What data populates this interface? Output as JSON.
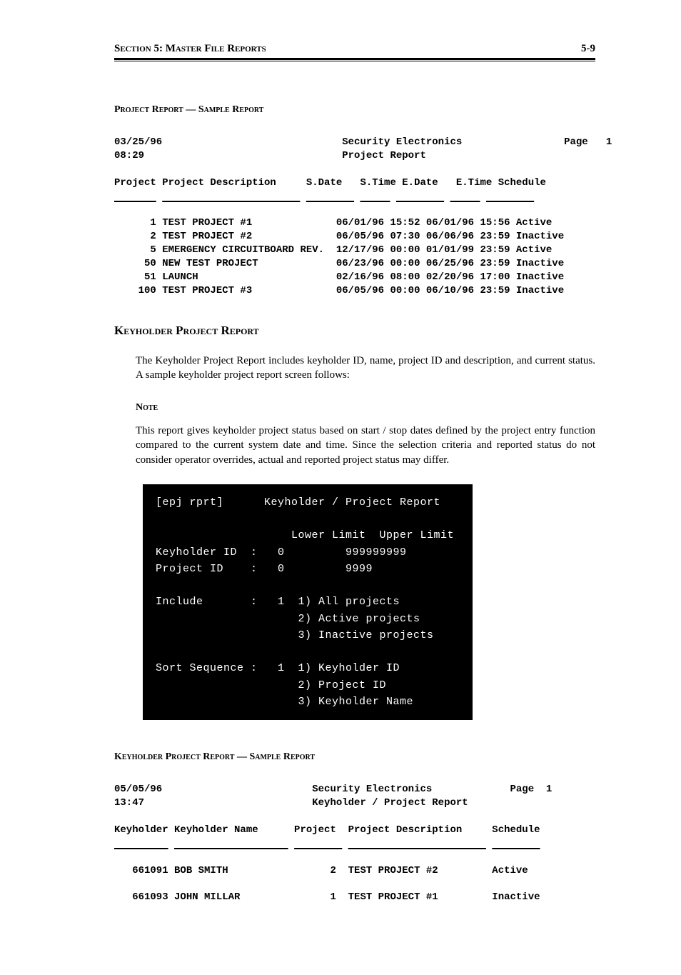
{
  "header": {
    "left": "Section 5: Master File Reports",
    "right": "5-9"
  },
  "caption1": "Project Report — Sample Report",
  "report1": {
    "date": "03/25/96",
    "time": "08:29",
    "company": "Security Electronics",
    "title": "Project Report",
    "page_label": "Page",
    "page_num": "1",
    "columns": [
      "Project",
      "Project Description",
      "S.Date",
      "S.Time",
      "E.Date",
      "E.Time",
      "Schedule"
    ],
    "rows": [
      {
        "id": "1",
        "desc": "TEST PROJECT #1",
        "sdate": "06/01/96",
        "stime": "15:52",
        "edate": "06/01/96",
        "etime": "15:56",
        "sched": "Active"
      },
      {
        "id": "2",
        "desc": "TEST PROJECT #2",
        "sdate": "06/05/96",
        "stime": "07:30",
        "edate": "06/06/96",
        "etime": "23:59",
        "sched": "Inactive"
      },
      {
        "id": "5",
        "desc": "EMERGENCY CIRCUITBOARD REV.",
        "sdate": "12/17/96",
        "stime": "00:00",
        "edate": "01/01/99",
        "etime": "23:59",
        "sched": "Active"
      },
      {
        "id": "50",
        "desc": "NEW TEST PROJECT",
        "sdate": "06/23/96",
        "stime": "00:00",
        "edate": "06/25/96",
        "etime": "23:59",
        "sched": "Inactive"
      },
      {
        "id": "51",
        "desc": "LAUNCH",
        "sdate": "02/16/96",
        "stime": "08:00",
        "edate": "02/20/96",
        "etime": "17:00",
        "sched": "Inactive"
      },
      {
        "id": "100",
        "desc": "TEST PROJECT #3",
        "sdate": "06/05/96",
        "stime": "00:00",
        "edate": "06/10/96",
        "etime": "23:59",
        "sched": "Inactive"
      }
    ]
  },
  "section2": {
    "heading": "Keyholder Project Report",
    "body": "The Keyholder Project Report includes keyholder ID, name, project ID and description, and current status.  A sample keyholder project report screen follows:",
    "note_heading": "Note",
    "note_body": "This report gives keyholder project status based on start / stop dates defined by the project entry function compared to the current system date and time.  Since the selection criteria and reported status do not consider operator overrides, actual and reported project status may differ."
  },
  "terminal": {
    "tag": "[epj rprt]",
    "title": "Keyholder / Project Report",
    "labels": {
      "lower": "Lower Limit",
      "upper": "Upper Limit",
      "keyholder_id": "Keyholder ID",
      "project_id": "Project ID",
      "include": "Include",
      "sort": "Sort Sequence"
    },
    "values": {
      "kh_lower": "0",
      "kh_upper": "999999999",
      "pj_lower": "0",
      "pj_upper": "9999",
      "include_val": "1",
      "sort_val": "1"
    },
    "include_opts": [
      "1) All projects",
      "2) Active projects",
      "3) Inactive projects"
    ],
    "sort_opts": [
      "1) Keyholder ID",
      "2) Project ID",
      "3) Keyholder Name"
    ]
  },
  "caption2": "Keyholder Project Report — Sample Report",
  "report2": {
    "date": "05/05/96",
    "time": "13:47",
    "company": "Security Electronics",
    "title": "Keyholder / Project Report",
    "page_label": "Page",
    "page_num": "1",
    "columns": [
      "Keyholder",
      "Keyholder Name",
      "Project",
      "Project Description",
      "Schedule"
    ],
    "rows": [
      {
        "kh": "661091",
        "name": "BOB SMITH",
        "proj": "2",
        "desc": "TEST PROJECT #2",
        "sched": "Active"
      },
      {
        "kh": "661093",
        "name": "JOHN MILLAR",
        "proj": "1",
        "desc": "TEST PROJECT #1",
        "sched": "Inactive"
      }
    ]
  }
}
